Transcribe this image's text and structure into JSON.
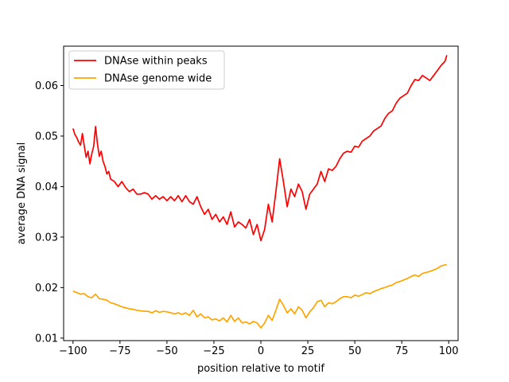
{
  "chart_data": {
    "type": "line",
    "title": "",
    "xlabel": "position relative to motif",
    "ylabel": "average DNA signal",
    "xlim": [
      -105,
      105
    ],
    "ylim": [
      0.0095,
      0.0678
    ],
    "xticks": [
      -100,
      -75,
      -50,
      -25,
      0,
      25,
      50,
      75,
      100
    ],
    "xtick_labels": [
      "−100",
      "−75",
      "−50",
      "−25",
      "0",
      "25",
      "50",
      "75",
      "100"
    ],
    "yticks": [
      0.01,
      0.02,
      0.03,
      0.04,
      0.05,
      0.06
    ],
    "ytick_labels": [
      "0.01",
      "0.02",
      "0.03",
      "0.04",
      "0.05",
      "0.06"
    ],
    "grid": false,
    "legend_position": "top-left",
    "series": [
      {
        "name": "DNAse within peaks",
        "color": "#ff0000",
        "x": [
          -100,
          -99,
          -98,
          -97,
          -96,
          -95,
          -94,
          -93,
          -92,
          -91,
          -90,
          -89,
          -88,
          -87,
          -86,
          -85,
          -84,
          -83,
          -82,
          -81,
          -80,
          -78,
          -76,
          -74,
          -72,
          -70,
          -68,
          -66,
          -64,
          -62,
          -60,
          -58,
          -56,
          -54,
          -52,
          -50,
          -48,
          -46,
          -44,
          -42,
          -40,
          -38,
          -36,
          -34,
          -32,
          -30,
          -28,
          -26,
          -24,
          -22,
          -20,
          -18,
          -16,
          -14,
          -12,
          -10,
          -8,
          -6,
          -4,
          -2,
          0,
          2,
          4,
          6,
          8,
          10,
          12,
          14,
          16,
          18,
          20,
          22,
          24,
          26,
          28,
          30,
          32,
          34,
          36,
          38,
          40,
          42,
          44,
          46,
          48,
          50,
          52,
          54,
          56,
          58,
          60,
          62,
          64,
          66,
          68,
          70,
          72,
          74,
          76,
          78,
          80,
          82,
          84,
          86,
          88,
          90,
          92,
          94,
          96,
          98,
          99
        ],
        "y": [
          0.0515,
          0.0503,
          0.0497,
          0.0488,
          0.0482,
          0.0505,
          0.048,
          0.0458,
          0.047,
          0.0445,
          0.0465,
          0.048,
          0.0519,
          0.0485,
          0.046,
          0.047,
          0.045,
          0.044,
          0.0425,
          0.043,
          0.0415,
          0.041,
          0.04,
          0.041,
          0.0398,
          0.039,
          0.0395,
          0.0385,
          0.0385,
          0.0388,
          0.0385,
          0.0375,
          0.0382,
          0.0375,
          0.038,
          0.0372,
          0.038,
          0.0372,
          0.0382,
          0.037,
          0.0382,
          0.037,
          0.0365,
          0.038,
          0.036,
          0.0345,
          0.0355,
          0.0335,
          0.0345,
          0.033,
          0.034,
          0.0325,
          0.035,
          0.032,
          0.033,
          0.0325,
          0.0318,
          0.0335,
          0.0305,
          0.0325,
          0.0293,
          0.0315,
          0.0365,
          0.033,
          0.039,
          0.0455,
          0.041,
          0.036,
          0.0395,
          0.038,
          0.0405,
          0.039,
          0.0355,
          0.0385,
          0.0395,
          0.0405,
          0.043,
          0.041,
          0.0435,
          0.0432,
          0.044,
          0.0455,
          0.0466,
          0.047,
          0.0468,
          0.048,
          0.0478,
          0.049,
          0.0495,
          0.05,
          0.051,
          0.0515,
          0.052,
          0.0535,
          0.0545,
          0.055,
          0.0565,
          0.0575,
          0.058,
          0.0585,
          0.06,
          0.0612,
          0.061,
          0.062,
          0.0615,
          0.061,
          0.062,
          0.063,
          0.064,
          0.0648,
          0.066
        ]
      },
      {
        "name": "DNAse genome wide",
        "color": "#ffa500",
        "x": [
          -100,
          -98,
          -96,
          -94,
          -92,
          -90,
          -88,
          -86,
          -84,
          -82,
          -80,
          -78,
          -76,
          -74,
          -72,
          -70,
          -68,
          -66,
          -64,
          -62,
          -60,
          -58,
          -56,
          -54,
          -52,
          -50,
          -48,
          -46,
          -44,
          -42,
          -40,
          -38,
          -36,
          -34,
          -32,
          -30,
          -28,
          -26,
          -24,
          -22,
          -20,
          -18,
          -16,
          -14,
          -12,
          -10,
          -8,
          -6,
          -4,
          -2,
          0,
          2,
          4,
          6,
          8,
          10,
          12,
          14,
          16,
          18,
          20,
          22,
          24,
          26,
          28,
          30,
          32,
          34,
          36,
          38,
          40,
          42,
          44,
          46,
          48,
          50,
          52,
          54,
          56,
          58,
          60,
          62,
          64,
          66,
          68,
          70,
          72,
          74,
          76,
          78,
          80,
          82,
          84,
          86,
          88,
          90,
          92,
          94,
          96,
          98,
          99
        ],
        "y": [
          0.0193,
          0.019,
          0.0187,
          0.0188,
          0.0182,
          0.018,
          0.0187,
          0.0178,
          0.0177,
          0.0175,
          0.017,
          0.0168,
          0.0165,
          0.0162,
          0.016,
          0.0158,
          0.0157,
          0.0155,
          0.0154,
          0.0153,
          0.0153,
          0.015,
          0.0154,
          0.0151,
          0.0153,
          0.0152,
          0.015,
          0.0148,
          0.015,
          0.0147,
          0.015,
          0.0145,
          0.0155,
          0.0142,
          0.0148,
          0.014,
          0.0142,
          0.0136,
          0.0138,
          0.0134,
          0.014,
          0.0132,
          0.0145,
          0.0133,
          0.014,
          0.013,
          0.0132,
          0.0128,
          0.0133,
          0.013,
          0.012,
          0.013,
          0.0145,
          0.0135,
          0.0155,
          0.0177,
          0.0165,
          0.015,
          0.0158,
          0.0148,
          0.0162,
          0.0155,
          0.014,
          0.0152,
          0.016,
          0.0172,
          0.0175,
          0.0162,
          0.017,
          0.0168,
          0.0172,
          0.0178,
          0.0182,
          0.0182,
          0.018,
          0.0185,
          0.0183,
          0.0186,
          0.019,
          0.0188,
          0.0192,
          0.0195,
          0.0198,
          0.02,
          0.0203,
          0.0205,
          0.021,
          0.0212,
          0.0215,
          0.0218,
          0.0222,
          0.0225,
          0.0222,
          0.0228,
          0.023,
          0.0232,
          0.0235,
          0.0238,
          0.0243,
          0.0245,
          0.0245
        ]
      }
    ]
  }
}
